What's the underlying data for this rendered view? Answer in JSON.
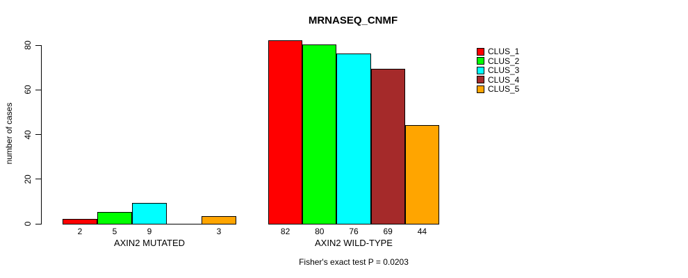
{
  "chart_data": {
    "type": "bar",
    "title": "MRNASEQ_CNMF",
    "ylabel": "number of cases",
    "xlabel": "",
    "categories": [
      "AXIN2 MUTATED",
      "AXIN2 WILD-TYPE"
    ],
    "series": [
      {
        "name": "CLUS_1",
        "color": "#ff0000",
        "values": [
          2,
          82
        ]
      },
      {
        "name": "CLUS_2",
        "color": "#00ff00",
        "values": [
          5,
          80
        ]
      },
      {
        "name": "CLUS_3",
        "color": "#00ffff",
        "values": [
          9,
          76
        ]
      },
      {
        "name": "CLUS_4",
        "color": "#a52a2a",
        "values": [
          0,
          69
        ]
      },
      {
        "name": "CLUS_5",
        "color": "#ffa500",
        "values": [
          3,
          44
        ]
      }
    ],
    "bar_value_labels": [
      [
        "2",
        "5",
        "9",
        "",
        "3"
      ],
      [
        "82",
        "80",
        "76",
        "69",
        "44"
      ]
    ],
    "yticks": [
      0,
      20,
      40,
      60,
      80
    ],
    "ylim": [
      0,
      80
    ],
    "grid": false,
    "legend_position": "top-right",
    "annotation": "Fisher's exact test P = 0.0203"
  }
}
